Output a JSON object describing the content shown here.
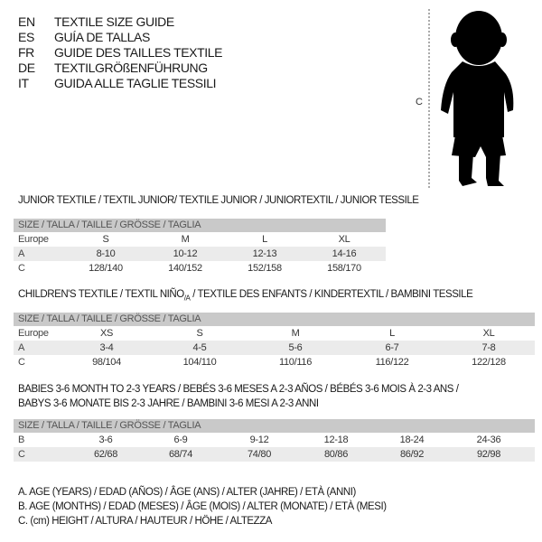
{
  "languages": [
    {
      "code": "EN",
      "name": "TEXTILE SIZE GUIDE"
    },
    {
      "code": "ES",
      "name": "GUÍA DE TALLAS"
    },
    {
      "code": "FR",
      "name": "GUIDE DES TAILLES TEXTILE"
    },
    {
      "code": "DE",
      "name": "TEXTILGRÖßENFÜHRUNG"
    },
    {
      "code": "IT",
      "name": "GUIDA ALLE TAGLIE TESSILI"
    }
  ],
  "figure": {
    "measure_label": "C",
    "icon": "baby-silhouette"
  },
  "header_label": "SIZE / TALLA / TAILLE / GRÖSSE / TAGLIA",
  "junior": {
    "title": "JUNIOR TEXTILE / TEXTIL JUNIOR/ TEXTILE JUNIOR / JUNIORTEXTIL / JUNIOR TESSILE",
    "rows": [
      {
        "label": "Europe",
        "values": [
          "S",
          "M",
          "L",
          "XL"
        ]
      },
      {
        "label": "A",
        "values": [
          "8-10",
          "10-12",
          "12-13",
          "14-16"
        ]
      },
      {
        "label": "C",
        "values": [
          "128/140",
          "140/152",
          "152/158",
          "158/170"
        ]
      }
    ]
  },
  "children": {
    "title_main": "CHILDREN'S TEXTILE / TEXTIL NIÑO",
    "title_sub": "/A",
    "title_rest": " / TEXTILE DES ENFANTS / KINDERTEXTIL / BAMBINI TESSILE",
    "rows": [
      {
        "label": "Europe",
        "values": [
          "XS",
          "S",
          "M",
          "L",
          "XL"
        ]
      },
      {
        "label": "A",
        "values": [
          "3-4",
          "4-5",
          "5-6",
          "6-7",
          "7-8"
        ]
      },
      {
        "label": "C",
        "values": [
          "98/104",
          "104/110",
          "110/116",
          "116/122",
          "122/128"
        ]
      }
    ]
  },
  "babies": {
    "title_line1": "BABIES 3-6 MONTH TO 2-3 YEARS / BEBÉS 3-6 MESES A 2-3 AÑOS / BÉBÉS 3-6 MOIS À 2-3 ANS /",
    "title_line2": "BABYS 3-6 MONATE BIS 2-3 JAHRE / BAMBINI 3-6 MESI A 2-3 ANNI",
    "rows": [
      {
        "label": "B",
        "values": [
          "3-6",
          "6-9",
          "9-12",
          "12-18",
          "18-24",
          "24-36"
        ]
      },
      {
        "label": "C",
        "values": [
          "62/68",
          "68/74",
          "74/80",
          "80/86",
          "86/92",
          "92/98"
        ]
      }
    ]
  },
  "legend": [
    "A. AGE (YEARS) / EDAD (AÑOS) / ÂGE (ANS) / ALTER (JAHRE) / ETÀ (ANNI)",
    "B. AGE (MONTHS) / EDAD (MESES) / ÂGE (MOIS) / ALTER (MONATE) / ETÀ (MESI)",
    "C. (cm) HEIGHT / ALTURA / HAUTEUR / HÖHE / ALTEZZA"
  ]
}
